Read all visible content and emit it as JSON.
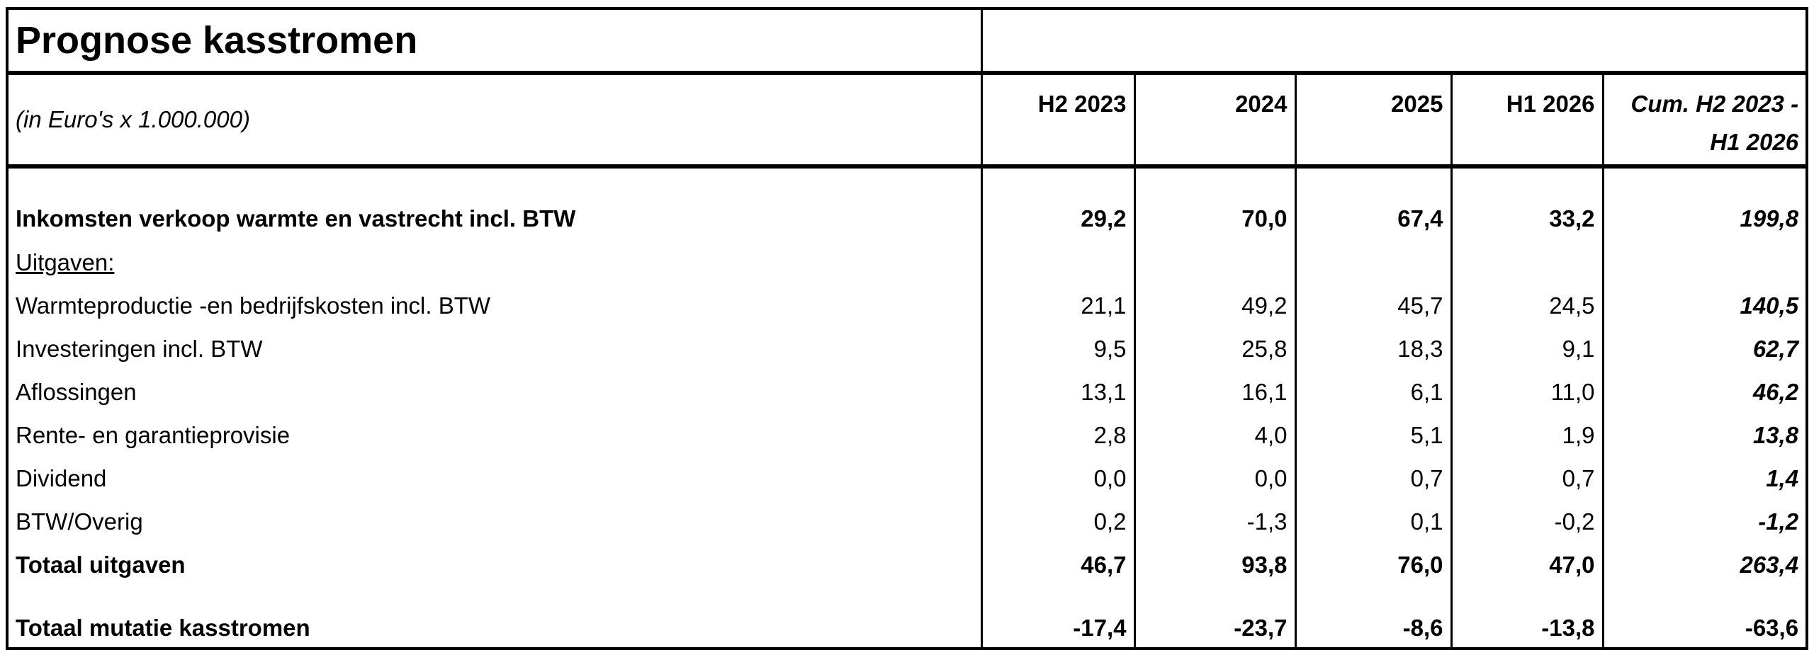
{
  "title": "Prognose kasstromen",
  "unit_label": "(in Euro's x 1.000.000)",
  "columns": [
    "H2 2023",
    "2024",
    "2025",
    "H1 2026",
    "Cum. H2 2023 -",
    "H1 2026"
  ],
  "rows": [
    {
      "label": "Inkomsten verkoop warmte en vastrecht incl. BTW",
      "values": [
        "29,2",
        "70,0",
        "67,4",
        "33,2",
        "199,8"
      ]
    },
    {
      "label": "Uitgaven:",
      "values": []
    },
    {
      "label": "Warmteproductie -en bedrijfskosten incl. BTW",
      "values": [
        "21,1",
        "49,2",
        "45,7",
        "24,5",
        "140,5"
      ]
    },
    {
      "label": "Investeringen incl. BTW",
      "values": [
        "9,5",
        "25,8",
        "18,3",
        "9,1",
        "62,7"
      ]
    },
    {
      "label": "Aflossingen",
      "values": [
        "13,1",
        "16,1",
        "6,1",
        "11,0",
        "46,2"
      ]
    },
    {
      "label": "Rente- en garantieprovisie",
      "values": [
        "2,8",
        "4,0",
        "5,1",
        "1,9",
        "13,8"
      ]
    },
    {
      "label": "Dividend",
      "values": [
        "0,0",
        "0,0",
        "0,7",
        "0,7",
        "1,4"
      ]
    },
    {
      "label": "BTW/Overig",
      "values": [
        "0,2",
        "-1,3",
        "0,1",
        "-0,2",
        "-1,2"
      ]
    },
    {
      "label": "Totaal uitgaven",
      "values": [
        "46,7",
        "93,8",
        "76,0",
        "47,0",
        "263,4"
      ]
    },
    {
      "label": "Totaal mutatie kasstromen",
      "values": [
        "-17,4",
        "-23,7",
        "-8,6",
        "-13,8",
        "-63,6"
      ]
    }
  ]
}
